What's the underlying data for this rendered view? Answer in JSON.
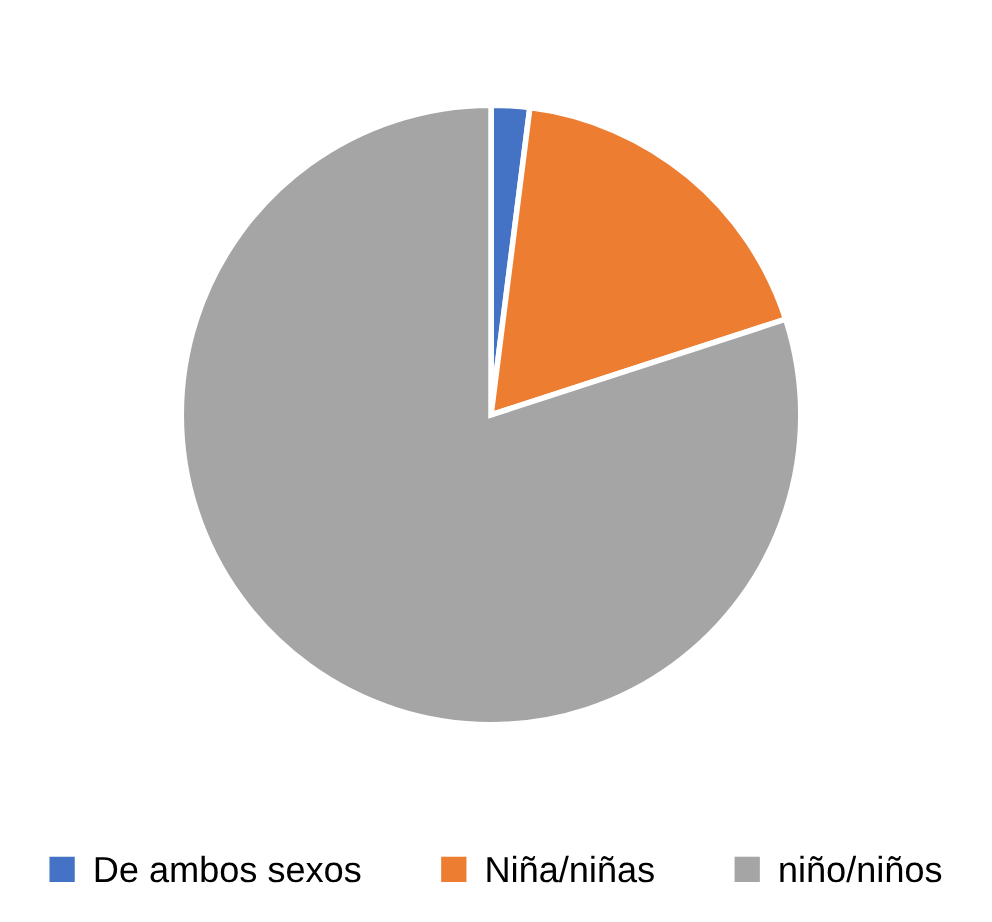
{
  "chart_data": {
    "type": "pie",
    "categories": [
      "De ambos sexos",
      "Niña/niñas",
      "niño/niños"
    ],
    "values": [
      2,
      18,
      80
    ],
    "colors": [
      "#4472c4",
      "#ed7d31",
      "#a5a5a5"
    ],
    "legend": "bottom"
  }
}
